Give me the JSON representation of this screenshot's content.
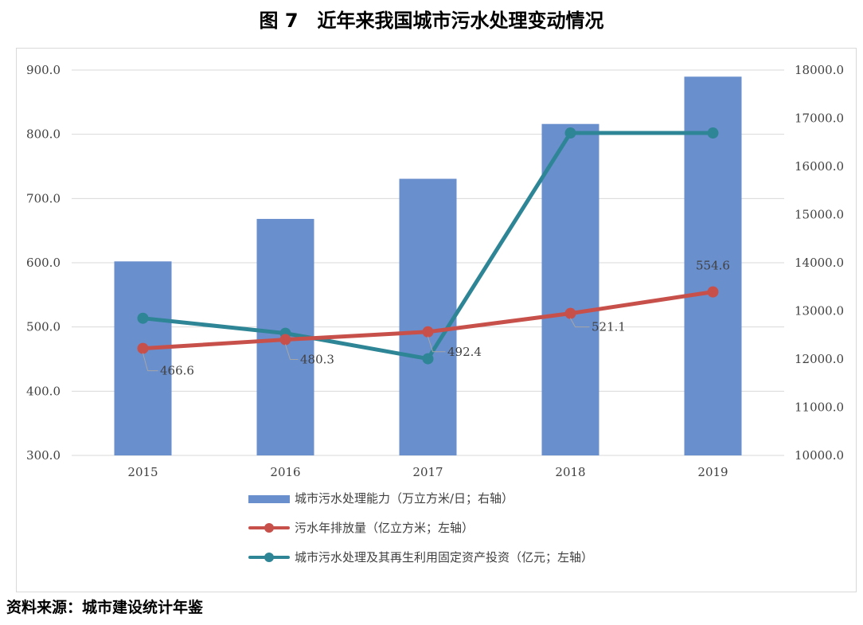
{
  "title": "图 7　近年来我国城市污水处理变动情况",
  "source": "资料来源：城市建设统计年鉴",
  "chart_data": {
    "type": "bar+line",
    "categories": [
      "2015",
      "2016",
      "2017",
      "2018",
      "2019"
    ],
    "left_axis": {
      "range": [
        300,
        900
      ],
      "ticks": [
        "300.0",
        "400.0",
        "500.0",
        "600.0",
        "700.0",
        "800.0",
        "900.0"
      ]
    },
    "right_axis": {
      "range": [
        10000,
        18000
      ],
      "ticks": [
        "10000.0",
        "11000.0",
        "12000.0",
        "13000.0",
        "14000.0",
        "15000.0",
        "16000.0",
        "17000.0",
        "18000.0"
      ]
    },
    "grid": true,
    "legend_position": "bottom",
    "series": [
      {
        "name": "城市污水处理能力（万立方米/日；右轴）",
        "type": "bar",
        "axis": "right",
        "color": "#6a8fcd",
        "values": [
          14028,
          14910,
          15743,
          16881,
          17863
        ]
      },
      {
        "name": "污水年排放量（亿立方米；左轴）",
        "type": "line",
        "axis": "left",
        "color": "#c8504b",
        "values": [
          466.6,
          480.3,
          492.4,
          521.1,
          554.6
        ],
        "data_labels": [
          "466.6",
          "480.3",
          "492.4",
          "521.1",
          "554.6"
        ]
      },
      {
        "name": "城市污水处理及其再生利用固定资产投资（亿元；左轴）",
        "type": "line",
        "axis": "left",
        "color": "#2e8596",
        "values": [
          513.6,
          490.2,
          450.5,
          802,
          802
        ]
      }
    ]
  }
}
